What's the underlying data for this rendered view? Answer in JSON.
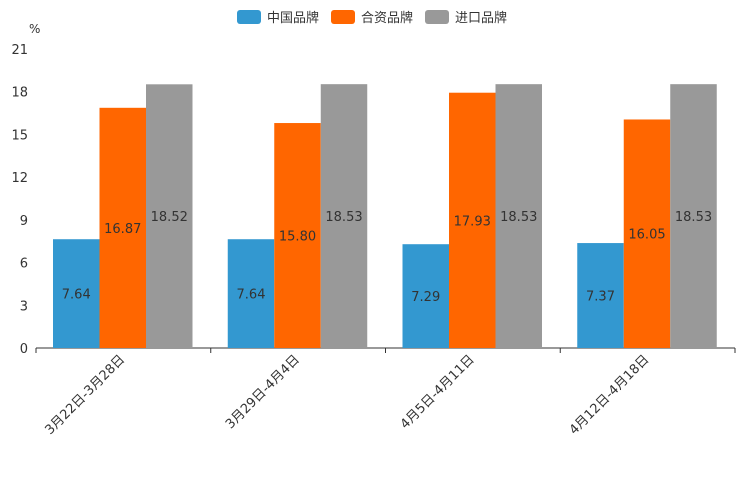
{
  "chart_data": {
    "type": "bar",
    "unit_label": "%",
    "categories": [
      "3月22日-3月28日",
      "3月29日-4月4日",
      "4月5日-4月11日",
      "4月12日-4月18日"
    ],
    "series": [
      {
        "name": "中国品牌",
        "color": "#3398d0",
        "values": [
          7.64,
          7.64,
          7.29,
          7.37
        ],
        "labels": [
          "7.64",
          "7.64",
          "7.29",
          "7.37"
        ]
      },
      {
        "name": "合资品牌",
        "color": "#ff6600",
        "values": [
          16.87,
          15.8,
          17.93,
          16.05
        ],
        "labels": [
          "16.87",
          "15.80",
          "17.93",
          "16.05"
        ]
      },
      {
        "name": "进口品牌",
        "color": "#999999",
        "values": [
          18.52,
          18.53,
          18.53,
          18.53
        ],
        "labels": [
          "18.52",
          "18.53",
          "18.53",
          "18.53"
        ]
      }
    ],
    "ylim": [
      0,
      21
    ],
    "yticks": [
      "0",
      "3",
      "6",
      "9",
      "12",
      "15",
      "18",
      "21"
    ],
    "legend_position": "top-center",
    "grid": false
  }
}
